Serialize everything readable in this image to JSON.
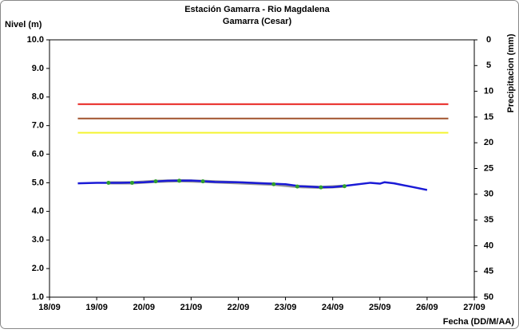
{
  "chart_data": {
    "type": "line",
    "title": "Estación Gamarra - Rio Magdalena",
    "subtitle": "Gamarra (Cesar)",
    "y_label": "Nivel (m)",
    "y2_label": "Precipitacion (mm)",
    "x_label": "Fecha (DD/M/AA)",
    "xlim": [
      18,
      27
    ],
    "xticks": [
      {
        "value": 18,
        "label": "18/09"
      },
      {
        "value": 19,
        "label": "19/09"
      },
      {
        "value": 20,
        "label": "20/09"
      },
      {
        "value": 21,
        "label": "21/09"
      },
      {
        "value": 22,
        "label": "22/09"
      },
      {
        "value": 23,
        "label": "23/09"
      },
      {
        "value": 24,
        "label": "24/09"
      },
      {
        "value": 25,
        "label": "25/09"
      },
      {
        "value": 26,
        "label": "26/09"
      },
      {
        "value": 27,
        "label": "27/09"
      }
    ],
    "ylim": [
      1,
      10
    ],
    "yticks": [
      {
        "value": 1,
        "label": "1.0"
      },
      {
        "value": 2,
        "label": "2.0"
      },
      {
        "value": 3,
        "label": "3.0"
      },
      {
        "value": 4,
        "label": "4.0"
      },
      {
        "value": 5,
        "label": "5.0"
      },
      {
        "value": 6,
        "label": "6.0"
      },
      {
        "value": 7,
        "label": "7.0"
      },
      {
        "value": 8,
        "label": "8.0"
      },
      {
        "value": 9,
        "label": "9.0"
      },
      {
        "value": 10,
        "label": "10.0"
      }
    ],
    "y2lim": [
      0,
      50
    ],
    "y2_inverted": true,
    "y2ticks": [
      0,
      5,
      10,
      15,
      20,
      25,
      30,
      35,
      40,
      45,
      50
    ],
    "grid": false,
    "series": [
      {
        "color": "#e8201c",
        "mode": "line",
        "width": 2,
        "x": [
          18.6,
          26.45
        ],
        "values": [
          7.75,
          7.75
        ]
      },
      {
        "color": "#a0522d",
        "mode": "line",
        "width": 2,
        "x": [
          18.6,
          26.45
        ],
        "values": [
          7.25,
          7.25
        ]
      },
      {
        "color": "#f4f430",
        "mode": "line",
        "width": 2,
        "x": [
          18.6,
          26.45
        ],
        "values": [
          6.75,
          6.75
        ]
      },
      {
        "color": "#999999",
        "mode": "line",
        "width": 4,
        "x": [
          19.25,
          19.75,
          20.25,
          20.75,
          21.25,
          22.75,
          23.25,
          23.75,
          24.25
        ],
        "values": [
          5.0,
          5.0,
          5.05,
          5.07,
          5.05,
          4.95,
          4.87,
          4.84,
          4.88
        ]
      },
      {
        "color": "#1a1ad6",
        "mode": "line",
        "width": 2.5,
        "x": [
          18.6,
          19,
          19.5,
          20,
          20.5,
          21,
          21.5,
          22,
          22.5,
          23,
          23.3,
          23.7,
          24,
          24.3,
          24.8,
          25,
          25.1,
          25.3,
          25.7,
          26
        ],
        "values": [
          4.98,
          5.0,
          5.0,
          5.02,
          5.07,
          5.08,
          5.03,
          5.02,
          4.98,
          4.95,
          4.88,
          4.85,
          4.85,
          4.9,
          5.0,
          4.97,
          5.02,
          4.98,
          4.85,
          4.75
        ]
      },
      {
        "color": "#2e9e2e",
        "mode": "markers",
        "x": [
          19.25,
          19.75,
          20.25,
          20.75,
          21.25,
          22.75,
          23.25,
          23.75,
          24.25
        ],
        "values": [
          5.0,
          5.0,
          5.05,
          5.07,
          5.05,
          4.95,
          4.87,
          4.84,
          4.88
        ]
      }
    ]
  }
}
